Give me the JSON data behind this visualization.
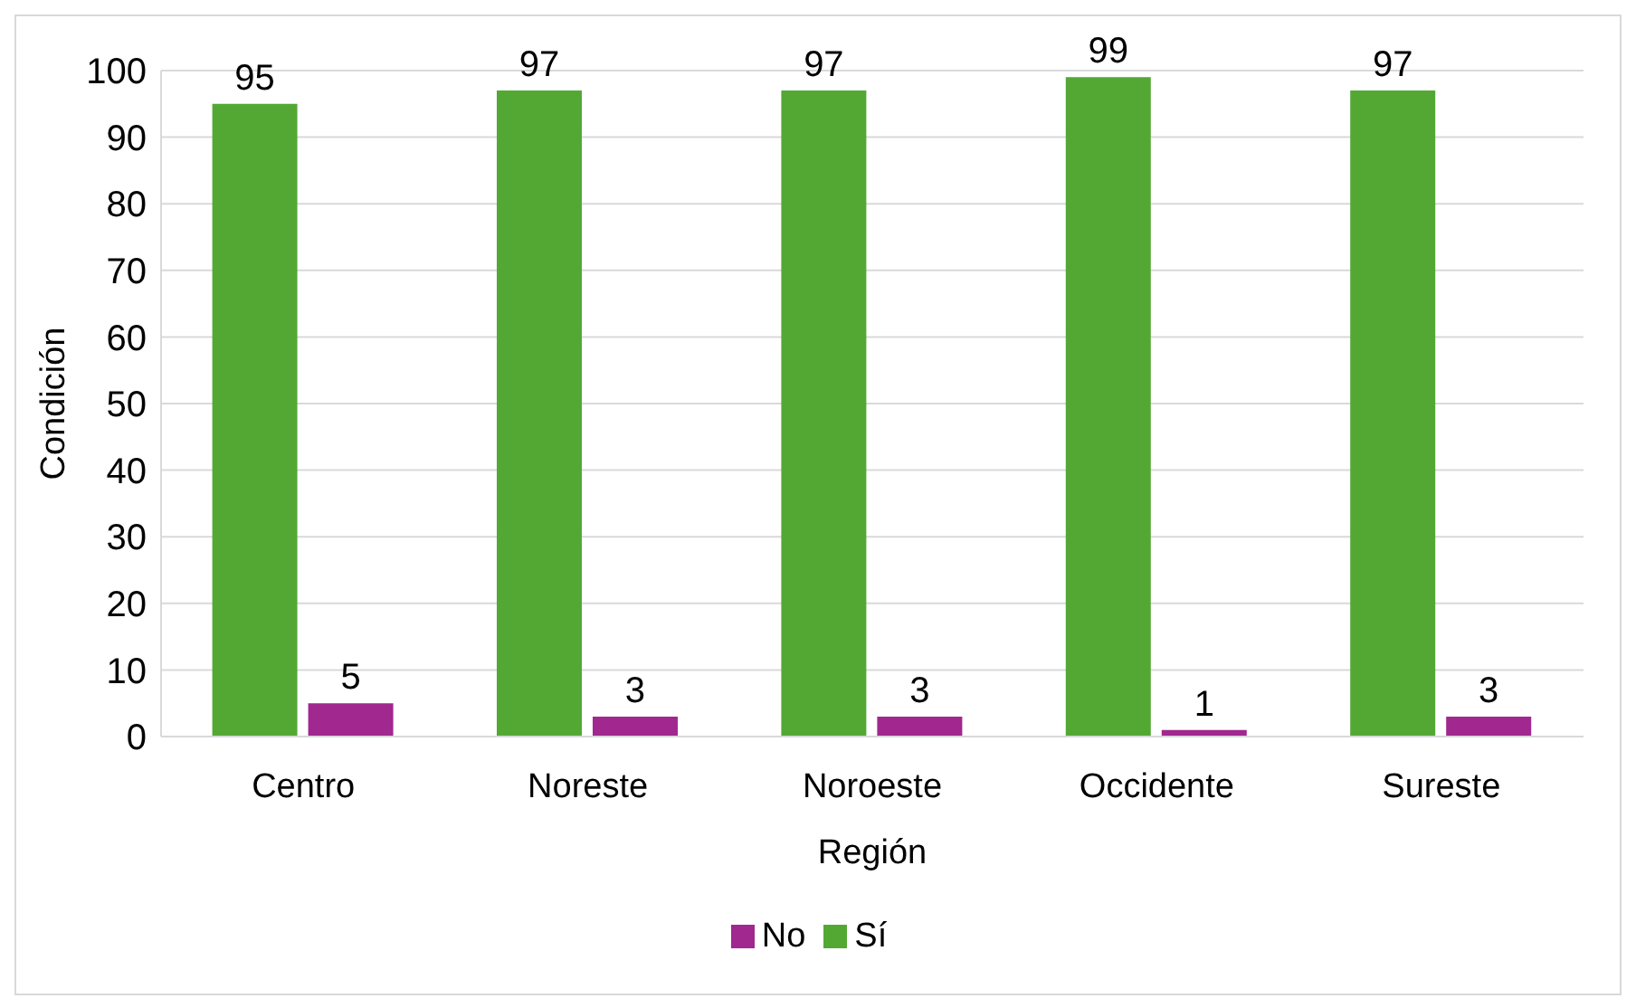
{
  "chart_data": {
    "type": "bar",
    "xlabel": "Región",
    "ylabel": "Condición",
    "categories": [
      "Centro",
      "Noreste",
      "Noroeste",
      "Occidente",
      "Sureste"
    ],
    "series": [
      {
        "name": "Sí",
        "color": "#53a834",
        "values": [
          95,
          97,
          97,
          99,
          97
        ]
      },
      {
        "name": "No",
        "color": "#a0288f",
        "values": [
          5,
          3,
          3,
          1,
          3
        ]
      }
    ],
    "ylim": [
      0,
      100
    ],
    "yticks": [
      0,
      10,
      20,
      30,
      40,
      50,
      60,
      70,
      80,
      90,
      100
    ],
    "grid": "y",
    "legend": "bottom",
    "data_labels": true
  }
}
